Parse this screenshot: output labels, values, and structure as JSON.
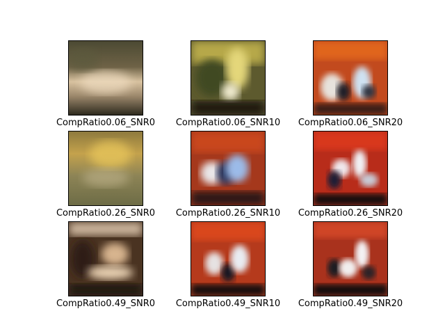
{
  "figure": {
    "panels": [
      {
        "caption": "CompRatio0.06_SNR0",
        "scene": "blurry-olive-light-center"
      },
      {
        "caption": "CompRatio0.06_SNR10",
        "scene": "olive-yellow-green-blur"
      },
      {
        "caption": "CompRatio0.06_SNR20",
        "scene": "orange-red-with-blue-white-object"
      },
      {
        "caption": "CompRatio0.26_SNR0",
        "scene": "olive-yellow-light-blur"
      },
      {
        "caption": "CompRatio0.26_SNR10",
        "scene": "red-with-blue-white-object"
      },
      {
        "caption": "CompRatio0.26_SNR20",
        "scene": "red-with-white-blue-object"
      },
      {
        "caption": "CompRatio0.49_SNR0",
        "scene": "brown-beige-blur"
      },
      {
        "caption": "CompRatio0.49_SNR10",
        "scene": "red-with-white-black-object"
      },
      {
        "caption": "CompRatio0.49_SNR20",
        "scene": "red-with-white-black-object-sharper"
      }
    ]
  }
}
